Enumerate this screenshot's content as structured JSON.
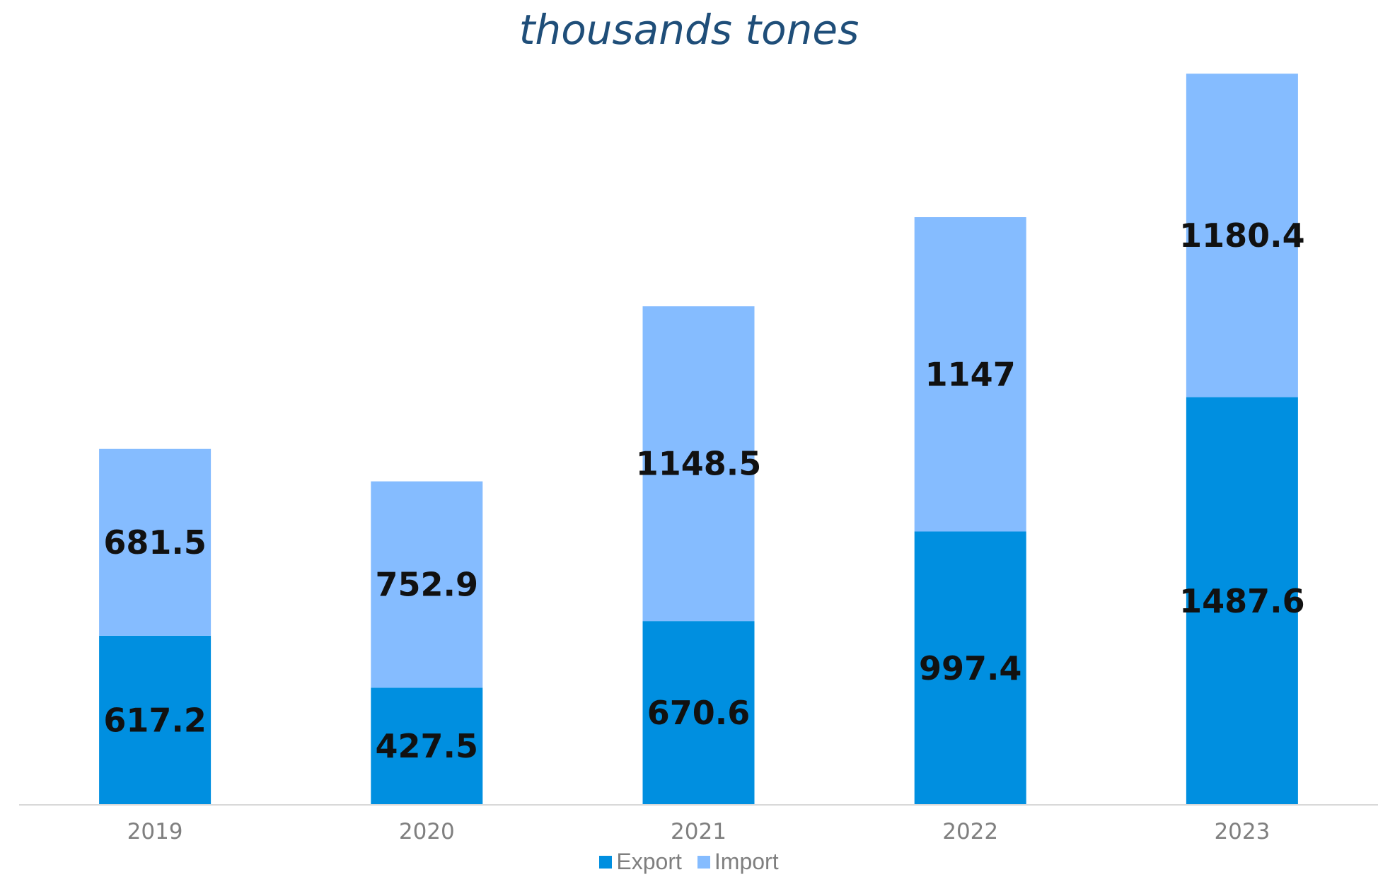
{
  "chart_data": {
    "type": "bar",
    "stacked": true,
    "title": "thousands tones",
    "categories": [
      "2019",
      "2020",
      "2021",
      "2022",
      "2023"
    ],
    "series": [
      {
        "name": "Export",
        "values": [
          617.2,
          427.5,
          670.6,
          997.4,
          1487.6
        ],
        "color": "#008fe0"
      },
      {
        "name": "Import",
        "values": [
          681.5,
          752.9,
          1148.5,
          1147,
          1180.4
        ],
        "color": "#85bcff"
      }
    ],
    "data_labels": true,
    "legend_position": "bottom",
    "grid": false,
    "ylim": [
      0,
      2700
    ]
  }
}
